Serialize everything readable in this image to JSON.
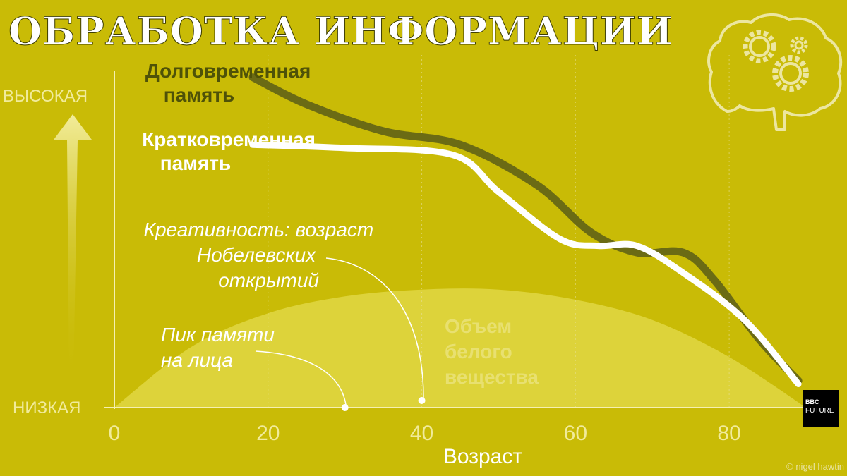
{
  "title": "ОБРАБОТКА ИНФОРМАЦИИ",
  "credit": "© nigel hawtin",
  "logo": {
    "line1": "BBC",
    "line2": "FUTURE"
  },
  "colors": {
    "background": "#c9bb06",
    "long_term": "#6b6b14",
    "short_term": "#ffffff",
    "white_matter": "#ddd33a"
  },
  "chart_data": {
    "type": "line",
    "title": "ОБРАБОТКА ИНФОРМАЦИИ",
    "xlabel": "Возраст",
    "ylabel_top": "ВЫСОКАЯ",
    "ylabel_bottom": "НИЗКАЯ",
    "xlim": [
      0,
      90
    ],
    "ylim": [
      0,
      100
    ],
    "xticks": [
      0,
      20,
      40,
      60,
      80
    ],
    "grid": "vertical dotted",
    "series": [
      {
        "name": "Долговременная память",
        "label_lines": [
          "Долговременная",
          "память"
        ],
        "kind": "line",
        "x": [
          18,
          25,
          35,
          45,
          55,
          62,
          68,
          74,
          78,
          84,
          89
        ],
        "y": [
          98,
          90,
          82,
          78,
          66,
          52,
          46,
          46,
          38,
          20,
          8
        ]
      },
      {
        "name": "Кратковременная память",
        "label_lines": [
          "Кратковременная",
          "память"
        ],
        "kind": "line",
        "x": [
          18,
          30,
          44,
          50,
          58,
          63,
          68,
          74,
          82,
          89
        ],
        "y": [
          78,
          77,
          75,
          64,
          50,
          48,
          48,
          40,
          26,
          7
        ]
      },
      {
        "name": "Объем белого вещества",
        "label_lines": [
          "Объем",
          "белого",
          "вещества"
        ],
        "kind": "area",
        "x": [
          0,
          10,
          20,
          30,
          40,
          50,
          60,
          70,
          80,
          90
        ],
        "y": [
          0,
          18,
          28,
          33,
          35,
          35,
          32,
          26,
          15,
          0
        ]
      }
    ],
    "annotations": [
      {
        "lines": [
          "Пик памяти",
          "на лица"
        ],
        "x": 30
      },
      {
        "lines": [
          "Креативность: возраст",
          "Нобелевских",
          "открытий"
        ],
        "x": 40
      }
    ]
  }
}
